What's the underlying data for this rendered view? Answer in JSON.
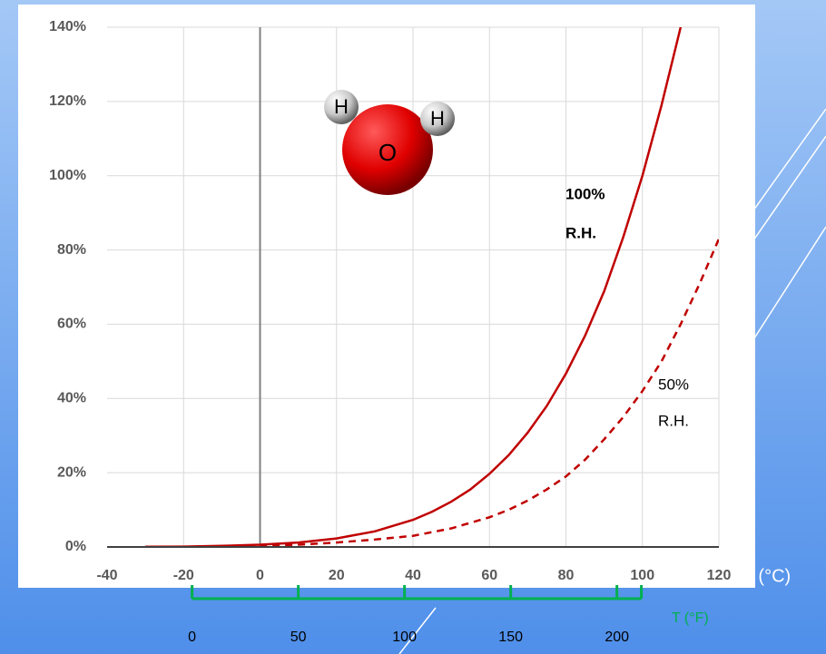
{
  "chart_data": {
    "type": "line",
    "x": [
      -30,
      -20,
      -10,
      0,
      10,
      20,
      30,
      40,
      45,
      50,
      55,
      60,
      65,
      70,
      75,
      80,
      85,
      90,
      95,
      100,
      105,
      110,
      115,
      120
    ],
    "series": [
      {
        "color": "#c00000",
        "dash": false,
        "values": [
          0.05,
          0.1,
          0.3,
          0.6,
          1.2,
          2.3,
          4.2,
          7.3,
          9.5,
          12.2,
          15.5,
          19.7,
          24.7,
          30.8,
          38,
          46.7,
          56.9,
          68.9,
          83.5,
          100,
          119,
          140,
          null,
          null
        ]
      },
      {
        "color": "#c00000",
        "dash": true,
        "values": [
          0,
          0.05,
          0.15,
          0.3,
          0.6,
          1.2,
          2,
          3,
          4,
          5,
          6.5,
          8,
          10,
          12.5,
          15.5,
          19,
          23.5,
          29,
          35,
          42,
          50,
          60,
          71,
          83
        ]
      }
    ],
    "xlim": [
      -40,
      120
    ],
    "xticks": [
      -40,
      -20,
      0,
      20,
      40,
      60,
      80,
      100,
      120
    ],
    "ylim": [
      0,
      140
    ],
    "yticks": [
      {
        "value": 0,
        "label": "0%"
      },
      {
        "value": 20,
        "label": "20%"
      },
      {
        "value": 40,
        "label": "40%"
      },
      {
        "value": 60,
        "label": "60%"
      },
      {
        "value": 80,
        "label": "80%"
      },
      {
        "value": 100,
        "label": "100%"
      },
      {
        "value": 120,
        "label": "120%"
      },
      {
        "value": 140,
        "label": "140%"
      }
    ],
    "grid": true,
    "xlabel": "T (°C)",
    "x2label": "T (°F)",
    "x2color": "#00b050",
    "x2lim": [
      -40,
      248
    ],
    "x2ticks": [
      0,
      50,
      100,
      150,
      200
    ],
    "annotations": [
      [
        "100%",
        "R.H."
      ],
      [
        "50%",
        "R.H."
      ]
    ],
    "molecule": {
      "atoms": [
        "O",
        "H",
        "H"
      ]
    }
  }
}
